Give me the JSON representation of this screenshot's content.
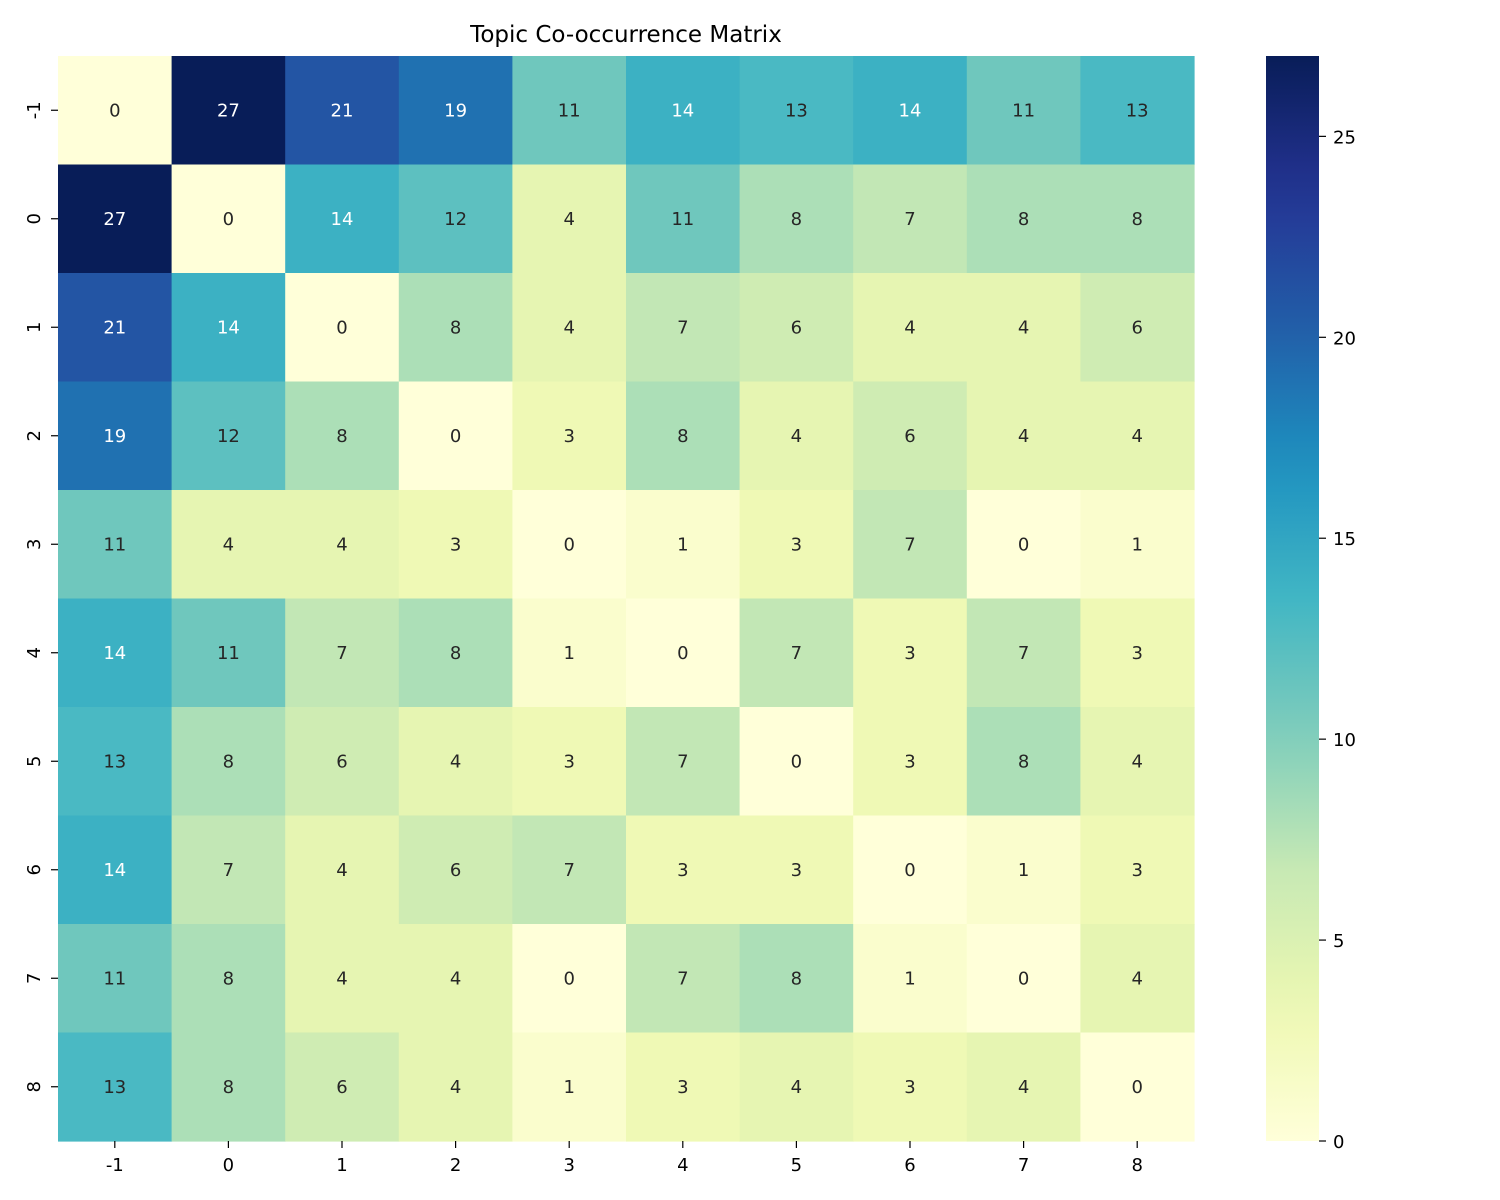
{
  "chart_data": {
    "type": "heatmap",
    "title": "Topic Co-occurrence Matrix",
    "xlabel": "",
    "ylabel": "",
    "x_categories": [
      "-1",
      "0",
      "1",
      "2",
      "3",
      "4",
      "5",
      "6",
      "7",
      "8"
    ],
    "y_categories": [
      "-1",
      "0",
      "1",
      "2",
      "3",
      "4",
      "5",
      "6",
      "7",
      "8"
    ],
    "values": [
      [
        0,
        27,
        21,
        19,
        11,
        14,
        13,
        14,
        11,
        13
      ],
      [
        27,
        0,
        14,
        12,
        4,
        11,
        8,
        7,
        8,
        8
      ],
      [
        21,
        14,
        0,
        8,
        4,
        7,
        6,
        4,
        4,
        6
      ],
      [
        19,
        12,
        8,
        0,
        3,
        8,
        4,
        6,
        4,
        4
      ],
      [
        11,
        4,
        4,
        3,
        0,
        1,
        3,
        7,
        0,
        1
      ],
      [
        14,
        11,
        7,
        8,
        1,
        0,
        7,
        3,
        7,
        3
      ],
      [
        13,
        8,
        6,
        4,
        3,
        7,
        0,
        3,
        8,
        4
      ],
      [
        14,
        7,
        4,
        6,
        7,
        3,
        3,
        0,
        1,
        3
      ],
      [
        11,
        8,
        4,
        4,
        0,
        7,
        8,
        1,
        0,
        4
      ],
      [
        13,
        8,
        6,
        4,
        1,
        3,
        4,
        3,
        4,
        0
      ]
    ],
    "colormap": "YlGnBu",
    "colorbar": {
      "range": [
        0,
        27
      ],
      "ticks": [
        0,
        5,
        10,
        15,
        20,
        25
      ]
    },
    "annotations": true,
    "grid": false,
    "legend": "none"
  }
}
